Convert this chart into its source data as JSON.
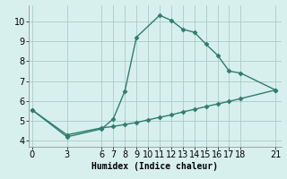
{
  "line1_x": [
    0,
    3,
    6,
    7,
    8,
    9,
    11,
    12,
    13,
    14,
    15,
    16,
    17,
    18,
    21
  ],
  "line1_y": [
    5.55,
    4.2,
    4.6,
    5.1,
    6.5,
    9.2,
    10.3,
    10.05,
    9.6,
    9.45,
    8.85,
    8.3,
    7.5,
    7.4,
    6.55
  ],
  "line2_x": [
    0,
    3,
    6,
    7,
    8,
    9,
    10,
    11,
    12,
    13,
    14,
    15,
    16,
    17,
    18,
    21
  ],
  "line2_y": [
    5.55,
    4.3,
    4.65,
    4.72,
    4.82,
    4.92,
    5.05,
    5.18,
    5.3,
    5.45,
    5.58,
    5.72,
    5.85,
    5.98,
    6.12,
    6.55
  ],
  "line_color": "#2e7d6e",
  "marker": "D",
  "markersize": 2.5,
  "linewidth": 1.0,
  "bg_color": "#d8f0ed",
  "grid_color": "#a8ccc8",
  "xlabel": "Humidex (Indice chaleur)",
  "xticks": [
    0,
    3,
    6,
    7,
    8,
    9,
    10,
    11,
    12,
    13,
    14,
    15,
    16,
    17,
    18,
    21
  ],
  "yticks": [
    4,
    5,
    6,
    7,
    8,
    9,
    10
  ],
  "xlim": [
    -0.3,
    21.5
  ],
  "ylim": [
    3.7,
    10.8
  ],
  "xlabel_fontsize": 7,
  "tick_fontsize": 7
}
